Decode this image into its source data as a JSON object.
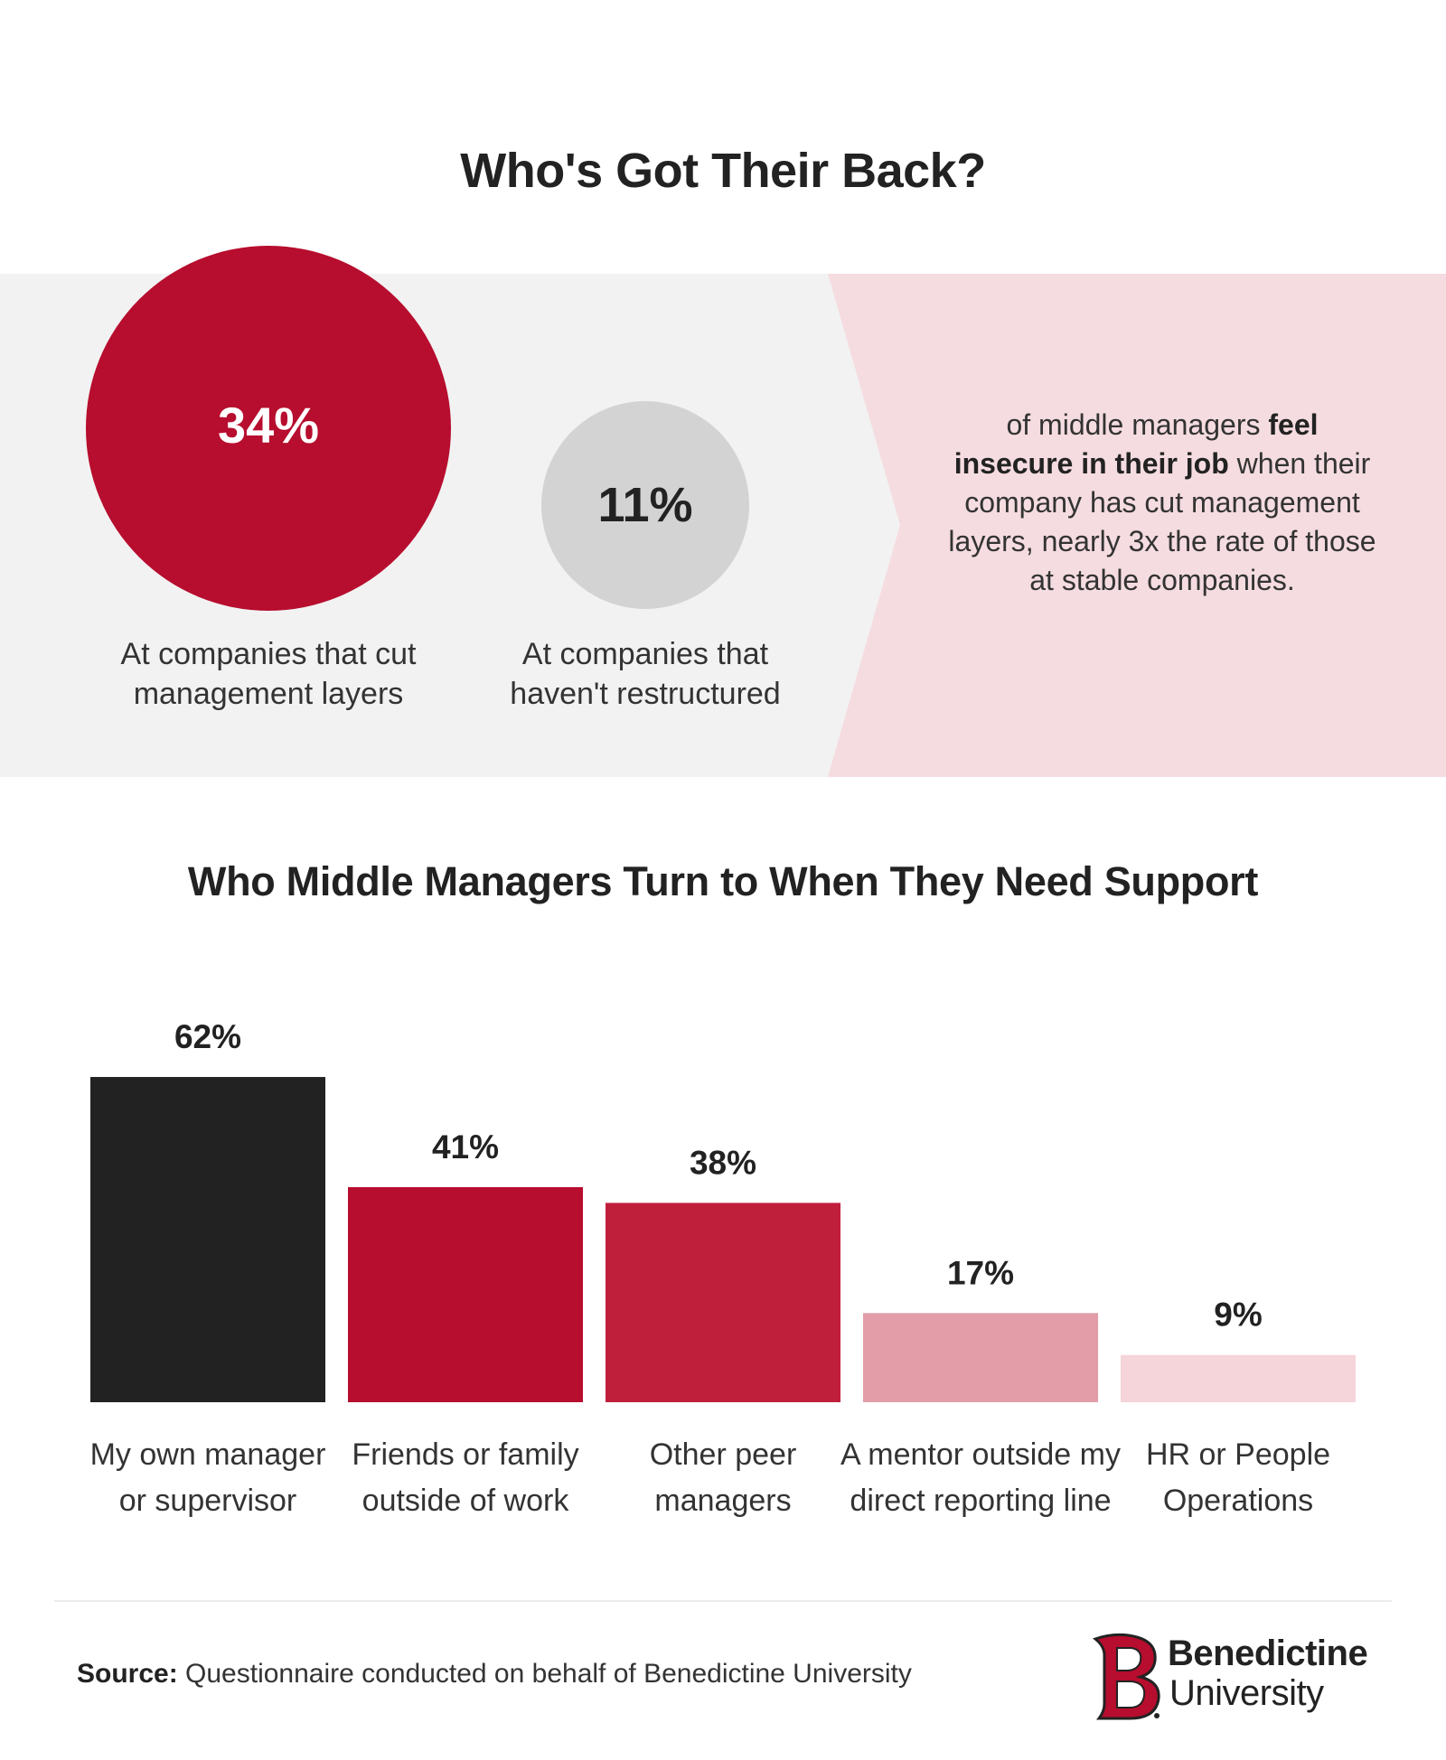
{
  "title": "Who's Got Their Back?",
  "comparison": {
    "big_circle": {
      "value": "34%",
      "caption_line1": "At companies that cut",
      "caption_line2": "management layers"
    },
    "small_circle": {
      "value": "11%",
      "caption_line1": "At companies that",
      "caption_line2": "haven't restructured"
    },
    "statement": {
      "part1": "of middle managers ",
      "bold": "feel insecure in their job",
      "part2": " when their company has cut management layers, nearly 3x the rate of those at stable companies."
    }
  },
  "chart_data": {
    "type": "bar",
    "title": "Who Middle Managers Turn to When They Need Support",
    "categories": [
      [
        "My own manager",
        "or supervisor"
      ],
      [
        "Friends or family",
        "outside of work"
      ],
      [
        "Other peer",
        "managers"
      ],
      [
        "A mentor outside my",
        "direct reporting line"
      ],
      [
        "HR or People",
        "Operations"
      ]
    ],
    "values": [
      62,
      41,
      38,
      17,
      9
    ],
    "value_labels": [
      "62%",
      "41%",
      "38%",
      "17%",
      "9%"
    ],
    "colors": [
      "#222222",
      "#b70d2e",
      "#c01f3c",
      "#e29da9",
      "#f5d4da"
    ],
    "grid": false,
    "legend": "none"
  },
  "footer": {
    "source_label": "Source:",
    "source_text": " Questionnaire conducted on behalf of Benedictine University",
    "logo_name": "Benedictine",
    "logo_sub": "University"
  }
}
